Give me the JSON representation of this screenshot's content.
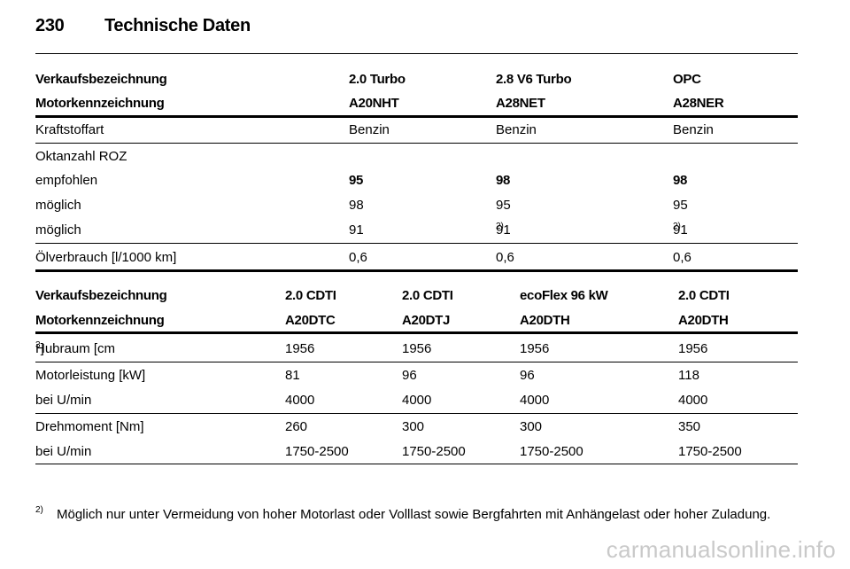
{
  "page": {
    "number": "230",
    "title": "Technische Daten"
  },
  "table1": {
    "header1": [
      "Verkaufsbezeichnung",
      "2.0 Turbo",
      "2.8 V6 Turbo",
      "OPC"
    ],
    "header2": [
      "Motorkennzeichnung",
      "A20NHT",
      "A28NET",
      "A28NER"
    ],
    "rows": {
      "fuel": [
        "Kraftstoffart",
        "Benzin",
        "Benzin",
        "Benzin"
      ],
      "octane_label": "Oktanzahl ROZ",
      "recommended": [
        "empfohlen",
        "95",
        "98",
        "98"
      ],
      "possible1": [
        "möglich",
        "98",
        "95",
        "95"
      ],
      "possible2": [
        "möglich",
        "91",
        "91",
        "91"
      ],
      "footnote_ref": "2)",
      "oil": [
        "Ölverbrauch [l/1000 km]",
        "0,6",
        "0,6",
        "0,6"
      ]
    }
  },
  "table2": {
    "header1": [
      "Verkaufsbezeichnung",
      "2.0 CDTI",
      "2.0 CDTI",
      "ecoFlex 96 kW",
      "2.0 CDTI"
    ],
    "header2": [
      "Motorkennzeichnung",
      "A20DTC",
      "A20DTJ",
      "A20DTH",
      "A20DTH"
    ],
    "rows": {
      "displacement_label": "Hubraum [cm",
      "displacement_sup": "3",
      "displacement_close": "]",
      "displacement": [
        "1956",
        "1956",
        "1956",
        "1956"
      ],
      "power": [
        "Motorleistung [kW]",
        "81",
        "96",
        "96",
        "118"
      ],
      "power_rpm": [
        "bei U/min",
        "4000",
        "4000",
        "4000",
        "4000"
      ],
      "torque": [
        "Drehmoment [Nm]",
        "260",
        "300",
        "300",
        "350"
      ],
      "torque_rpm": [
        "bei U/min",
        "1750-2500",
        "1750-2500",
        "1750-2500",
        "1750-2500"
      ]
    }
  },
  "footnote": {
    "mark": "2)",
    "text": "Möglich nur unter Vermeidung von hoher Motorlast oder Volllast sowie Bergfahrten mit Anhängelast oder hoher Zuladung."
  },
  "watermark": "carmanualsonline.info"
}
